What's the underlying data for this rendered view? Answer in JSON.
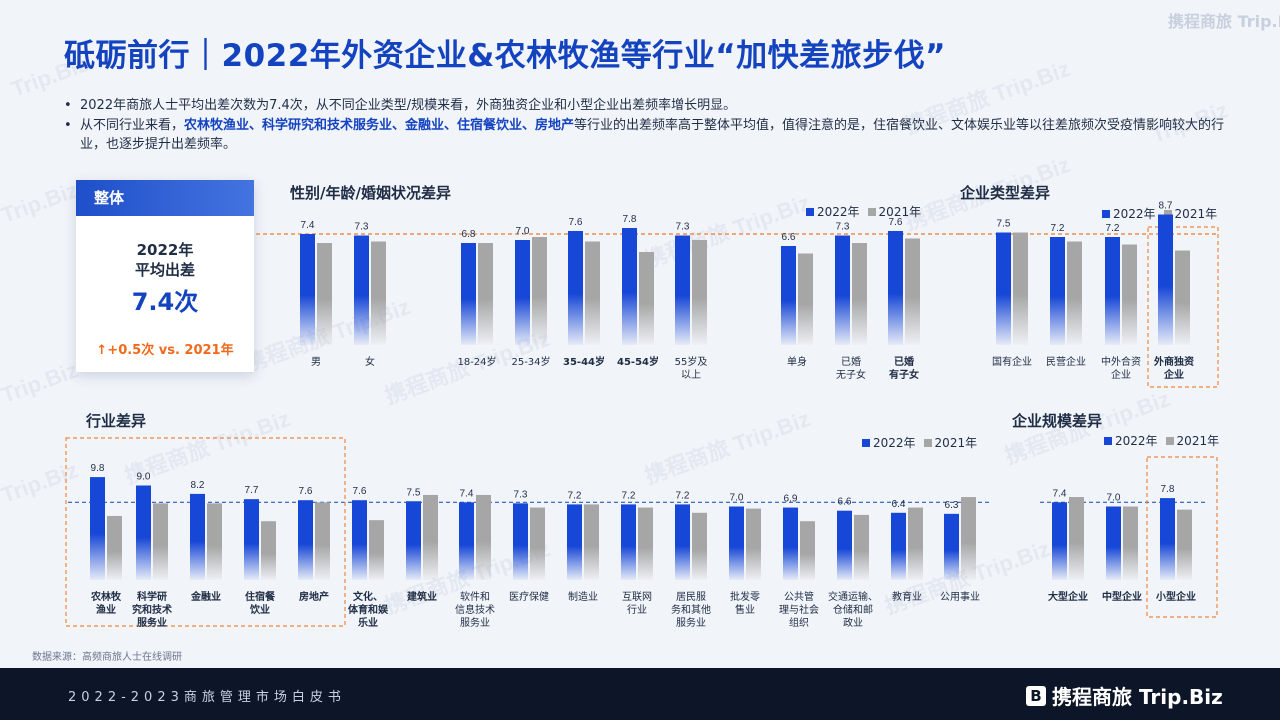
{
  "title": "砥砺前行｜2022年外资企业&农林牧渔等行业“加快差旅步伐”",
  "brand_mark": "携程商旅 Trip.Biz",
  "bullets": {
    "b1": "2022年商旅人士平均出差次数为7.4次，从不同企业类型/规模来看，外商独资企业和小型企业出差频率增长明显。",
    "b2_pre": "从不同行业来看，",
    "b2_hl": "农林牧渔业、科学研究和技术服务业、金融业、住宿餐饮业、房地产",
    "b2_post": "等行业的出差频率高于整体平均值，值得注意的是，住宿餐饮业、文体娱乐业等以往差旅频次受疫情影响较大的行业，也逐步提升出差频率。"
  },
  "overall": {
    "header": "整体",
    "line1": "2022年",
    "line2": "平均出差",
    "value": "7.4次",
    "change": "+0.5次 vs. 2021年"
  },
  "sections": {
    "demo": "性别/年龄/婚姻状况差异",
    "etype": "企业类型差异",
    "industry": "行业差异",
    "scale": "企业规模差异"
  },
  "legend": {
    "y2022": "2022年",
    "y2021": "2021年"
  },
  "colors": {
    "y2022": "#1747d6",
    "y2021": "#a6a6a6",
    "avg_line_orange": "#f07a30",
    "avg_line_blue": "#2b59c3",
    "highlight_box": "#f0883e"
  },
  "source": "数据来源：高频商旅人士在线调研",
  "footer": "2022-2023商旅管理市场白皮书",
  "footer_logo": "携程商旅 Trip.Biz",
  "chart_data": [
    {
      "type": "bar",
      "title": "性别/年龄/婚姻状况差异",
      "categories": [
        "男",
        "女",
        "18-24岁",
        "25-34岁",
        "35-44岁",
        "45-54岁",
        "55岁及\n以上",
        "单身",
        "已婚\n无子女",
        "已婚\n有子女"
      ],
      "bold_categories": [
        "35-44岁",
        "45-54岁",
        "已婚\n有子女"
      ],
      "series": [
        {
          "name": "2022年",
          "values": [
            7.4,
            7.3,
            6.8,
            7.0,
            7.6,
            7.8,
            7.3,
            6.6,
            7.3,
            7.6
          ]
        },
        {
          "name": "2021年",
          "values": [
            6.8,
            6.9,
            6.8,
            7.2,
            6.9,
            6.2,
            7.0,
            6.1,
            6.8,
            7.1
          ]
        }
      ],
      "labels_shown": [
        7.4,
        7.3,
        6.8,
        7.0,
        7.6,
        7.8,
        7.3,
        6.6,
        7.3,
        7.6
      ],
      "reference_line": 7.4
    },
    {
      "type": "bar",
      "title": "企业类型差异",
      "categories": [
        "国有企业",
        "民营企业",
        "中外合资\n企业",
        "外商独资\n企业"
      ],
      "bold_categories": [
        "外商独资\n企业"
      ],
      "highlighted": [
        "外商独资\n企业"
      ],
      "series": [
        {
          "name": "2022年",
          "values": [
            7.5,
            7.2,
            7.2,
            8.7
          ]
        },
        {
          "name": "2021年",
          "values": [
            7.5,
            6.9,
            6.7,
            6.3
          ]
        }
      ],
      "labels_shown": [
        7.5,
        7.2,
        7.2,
        8.7
      ],
      "reference_line": 7.4
    },
    {
      "type": "bar",
      "title": "行业差异",
      "categories": [
        "农林牧\n渔业",
        "科学研\n究和技术\n服务业",
        "金融业",
        "住宿餐\n饮业",
        "房地产",
        "文化、\n体育和娱\n乐业",
        "建筑业",
        "软件和\n信息技术\n服务业",
        "医疗保健",
        "制造业",
        "互联网\n行业",
        "居民服\n务和其他\n服务业",
        "批发零\n售业",
        "公共管\n理与社会\n组织",
        "交通运输、\n仓储和邮\n政业",
        "教育业",
        "公用事业"
      ],
      "bold_categories": [
        "农林牧\n渔业",
        "科学研\n究和技术\n服务业",
        "金融业",
        "住宿餐\n饮业",
        "房地产",
        "文化、\n体育和娱\n乐业",
        "建筑业"
      ],
      "highlighted": [
        "农林牧\n渔业",
        "科学研\n究和技术\n服务业",
        "金融业",
        "住宿餐\n饮业",
        "房地产"
      ],
      "series": [
        {
          "name": "2022年",
          "values": [
            9.8,
            9.0,
            8.2,
            7.7,
            7.6,
            7.6,
            7.5,
            7.4,
            7.3,
            7.2,
            7.2,
            7.2,
            7.0,
            6.9,
            6.6,
            6.4,
            6.3
          ]
        },
        {
          "name": "2021年",
          "values": [
            6.1,
            7.3,
            7.3,
            5.6,
            7.4,
            5.7,
            8.1,
            8.1,
            6.9,
            7.2,
            6.9,
            6.4,
            6.8,
            5.6,
            6.2,
            6.9,
            7.9
          ]
        }
      ],
      "labels_shown": [
        9.8,
        9.0,
        8.2,
        7.7,
        7.6,
        7.6,
        7.5,
        7.4,
        7.3,
        7.2,
        7.2,
        7.2,
        7.0,
        6.9,
        6.6,
        6.4,
        6.3
      ],
      "reference_line": 7.4
    },
    {
      "type": "bar",
      "title": "企业规模差异",
      "categories": [
        "大型企业",
        "中型企业",
        "小型企业"
      ],
      "bold_categories": [
        "大型企业",
        "中型企业",
        "小型企业"
      ],
      "highlighted": [
        "小型企业"
      ],
      "series": [
        {
          "name": "2022年",
          "values": [
            7.4,
            7.0,
            7.8
          ]
        },
        {
          "name": "2021年",
          "values": [
            7.9,
            7.0,
            6.7
          ]
        }
      ],
      "labels_shown": [
        7.4,
        7.0,
        7.8
      ],
      "reference_line": 7.4
    }
  ]
}
